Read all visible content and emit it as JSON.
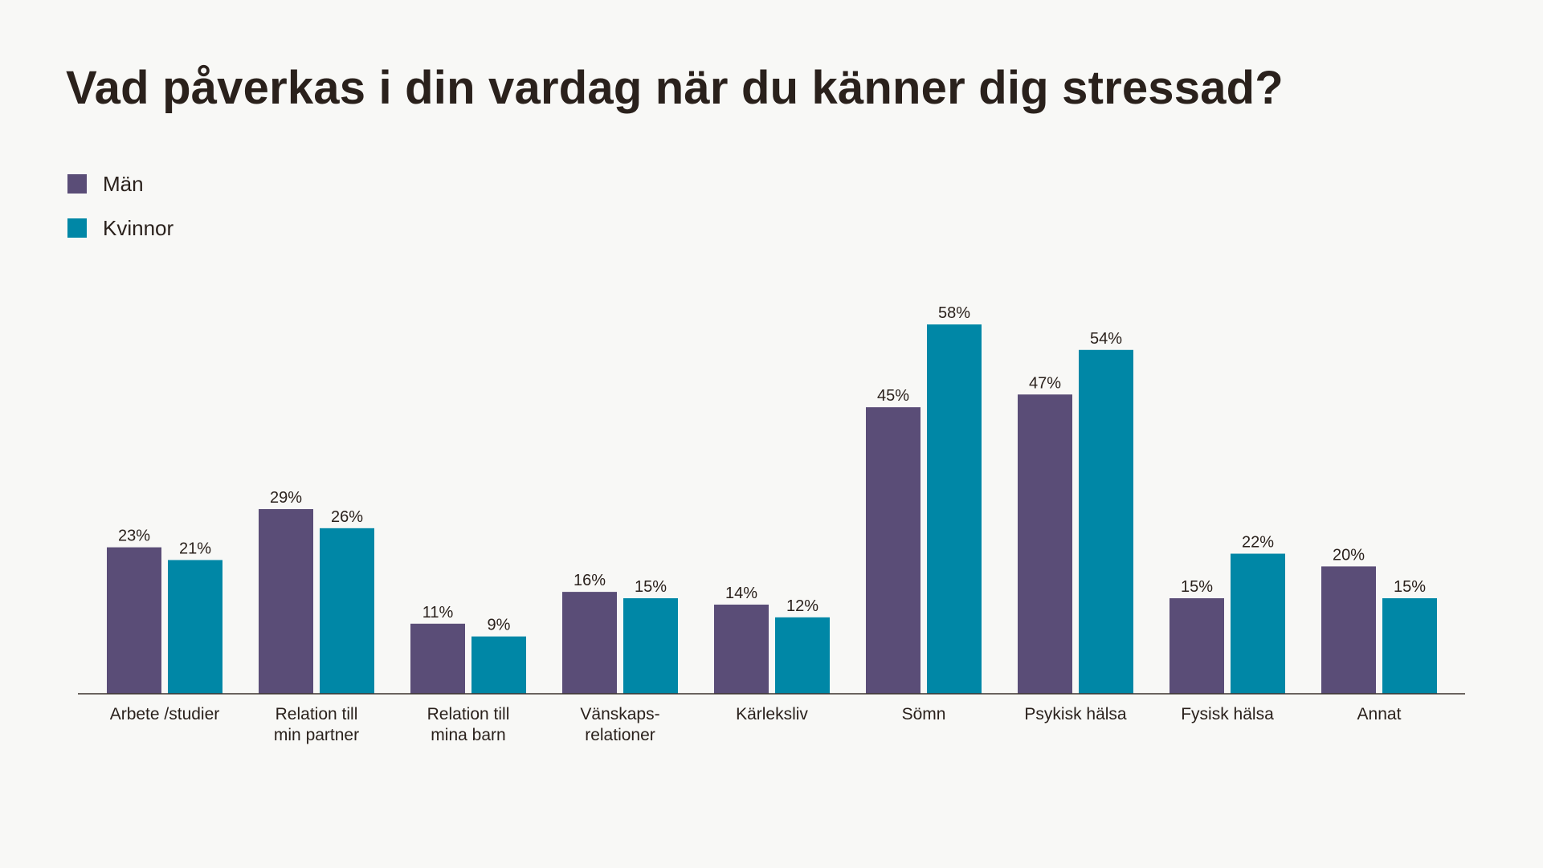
{
  "colors": {
    "men": "#5a4d77",
    "women": "#0087a6",
    "axis": "#3a322d",
    "background": "#f8f8f6"
  },
  "chart_data": {
    "type": "bar",
    "title": "Vad påverkas i din vardag när du känner dig stressad?",
    "legend_position": "top-left",
    "grid": false,
    "ylim": [
      0,
      60
    ],
    "categories": [
      [
        "Arbete /studier"
      ],
      [
        "Relation till",
        "min partner"
      ],
      [
        "Relation till",
        "mina barn"
      ],
      [
        "Vänskaps-",
        "relationer"
      ],
      [
        "Kärleksliv"
      ],
      [
        "Sömn"
      ],
      [
        "Psykisk hälsa"
      ],
      [
        "Fysisk hälsa"
      ],
      [
        "Annat"
      ]
    ],
    "series": [
      {
        "name": "Män",
        "color": "#5a4d77",
        "values": [
          23,
          29,
          11,
          16,
          14,
          45,
          47,
          15,
          20
        ]
      },
      {
        "name": "Kvinnor",
        "color": "#0087a6",
        "values": [
          21,
          26,
          9,
          15,
          12,
          58,
          54,
          22,
          15
        ]
      }
    ]
  }
}
